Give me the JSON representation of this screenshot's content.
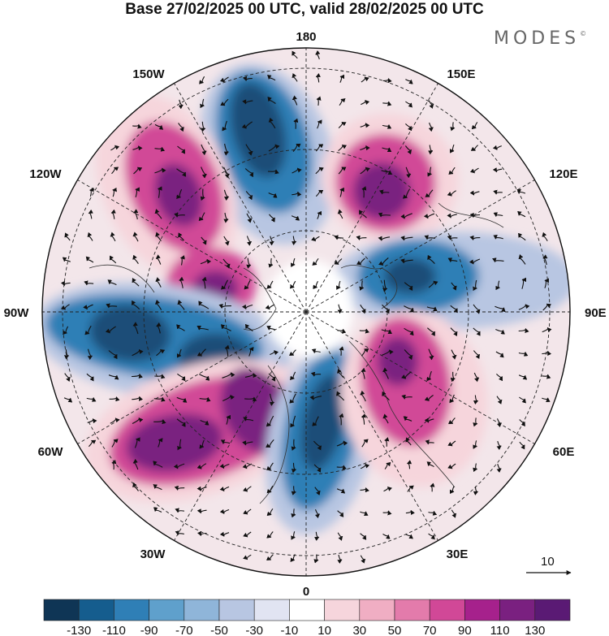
{
  "title": "Base 27/02/2025 00 UTC, valid 28/02/2025 00 UTC",
  "brand": {
    "name": "MODES",
    "mark": "©"
  },
  "map": {
    "projection": "north-polar-stereographic",
    "longitude_labels": [
      "180",
      "150E",
      "120E",
      "90E",
      "60E",
      "30E",
      "0",
      "30W",
      "60W",
      "90W",
      "120W",
      "150W"
    ],
    "vector_reference": {
      "value": "10",
      "icon": "arrow-right-icon"
    }
  },
  "colorbar": {
    "tick_labels": [
      "-130",
      "-110",
      "-90",
      "-70",
      "-50",
      "-30",
      "-10",
      "10",
      "30",
      "50",
      "70",
      "90",
      "110",
      "130"
    ],
    "colors": [
      "#0f3555",
      "#155d8e",
      "#2f7fb6",
      "#5fa0cc",
      "#8fb5d9",
      "#b8c6e2",
      "#e1e4f2",
      "#ffffff",
      "#f6d5dc",
      "#f0aec3",
      "#e37bab",
      "#d14897",
      "#a6218c",
      "#7a2080",
      "#5a1a74"
    ]
  },
  "colors": {
    "deep_negative": "#1a4e78",
    "strong_negative": "#2f7fb6",
    "weak_negative": "#b8c6e2",
    "weak_positive": "#f6d5dc",
    "strong_positive": "#d14897",
    "deep_positive": "#7a2080"
  }
}
